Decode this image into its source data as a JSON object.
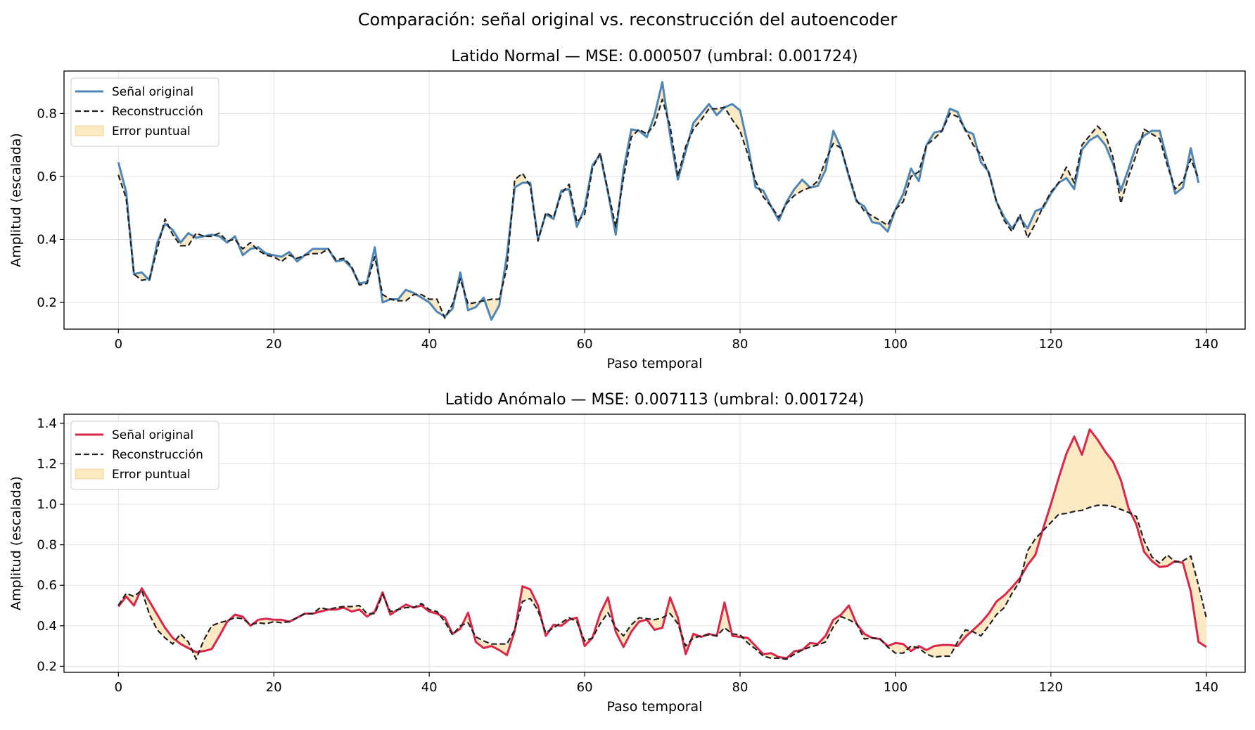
{
  "figure": {
    "suptitle": "Comparación: señal original vs. reconstrucción del autoencoder"
  },
  "chart_data": [
    {
      "type": "line",
      "title": "Latido Normal — MSE: 0.000507 (umbral: 0.001724)",
      "xlabel": "Paso temporal",
      "ylabel": "Amplitud (escalada)",
      "xlim": [
        -7,
        145
      ],
      "ylim": [
        0.115,
        0.935
      ],
      "xticks": [
        0,
        20,
        40,
        60,
        80,
        100,
        120,
        140
      ],
      "yticks": [
        0.2,
        0.4,
        0.6,
        0.8
      ],
      "grid": true,
      "legend_position": "upper left",
      "legend": [
        "Señal original",
        "Reconstrucción",
        "Error puntual"
      ],
      "fill_color": "#fde9c2",
      "series": [
        {
          "name": "Señal original",
          "color": "#4f86b8",
          "style": "solid",
          "values": [
            0.645,
            0.55,
            0.29,
            0.295,
            0.27,
            0.39,
            0.45,
            0.43,
            0.39,
            0.42,
            0.405,
            0.41,
            0.415,
            0.41,
            0.39,
            0.41,
            0.35,
            0.37,
            0.375,
            0.355,
            0.35,
            0.345,
            0.36,
            0.33,
            0.35,
            0.37,
            0.37,
            0.37,
            0.33,
            0.335,
            0.31,
            0.26,
            0.265,
            0.375,
            0.2,
            0.21,
            0.21,
            0.24,
            0.23,
            0.215,
            0.2,
            0.17,
            0.155,
            0.18,
            0.295,
            0.175,
            0.185,
            0.215,
            0.145,
            0.19,
            0.35,
            0.565,
            0.58,
            0.58,
            0.4,
            0.48,
            0.465,
            0.555,
            0.56,
            0.44,
            0.5,
            0.635,
            0.67,
            0.55,
            0.415,
            0.62,
            0.75,
            0.745,
            0.725,
            0.795,
            0.9,
            0.73,
            0.59,
            0.68,
            0.77,
            0.8,
            0.83,
            0.795,
            0.82,
            0.83,
            0.81,
            0.7,
            0.565,
            0.555,
            0.505,
            0.46,
            0.52,
            0.56,
            0.59,
            0.565,
            0.57,
            0.62,
            0.745,
            0.69,
            0.6,
            0.52,
            0.505,
            0.455,
            0.45,
            0.425,
            0.495,
            0.545,
            0.625,
            0.585,
            0.7,
            0.74,
            0.745,
            0.815,
            0.805,
            0.745,
            0.735,
            0.645,
            0.615,
            0.52,
            0.47,
            0.435,
            0.47,
            0.435,
            0.49,
            0.5,
            0.545,
            0.58,
            0.595,
            0.56,
            0.685,
            0.715,
            0.73,
            0.7,
            0.64,
            0.555,
            0.625,
            0.7,
            0.73,
            0.745,
            0.745,
            0.65,
            0.545,
            0.565,
            0.69,
            0.58
          ]
        },
        {
          "name": "Reconstrucción",
          "color": "#222222",
          "style": "dashed",
          "values": [
            0.605,
            0.53,
            0.29,
            0.27,
            0.275,
            0.37,
            0.465,
            0.415,
            0.38,
            0.38,
            0.42,
            0.41,
            0.41,
            0.42,
            0.395,
            0.4,
            0.37,
            0.39,
            0.365,
            0.35,
            0.345,
            0.33,
            0.35,
            0.34,
            0.35,
            0.355,
            0.355,
            0.37,
            0.335,
            0.34,
            0.315,
            0.255,
            0.26,
            0.345,
            0.225,
            0.21,
            0.205,
            0.205,
            0.225,
            0.225,
            0.21,
            0.21,
            0.15,
            0.195,
            0.275,
            0.195,
            0.2,
            0.205,
            0.21,
            0.21,
            0.31,
            0.59,
            0.61,
            0.57,
            0.395,
            0.485,
            0.47,
            0.545,
            0.575,
            0.455,
            0.48,
            0.625,
            0.675,
            0.555,
            0.44,
            0.595,
            0.725,
            0.75,
            0.735,
            0.765,
            0.845,
            0.76,
            0.6,
            0.695,
            0.75,
            0.78,
            0.815,
            0.815,
            0.82,
            0.78,
            0.745,
            0.67,
            0.585,
            0.535,
            0.505,
            0.47,
            0.515,
            0.54,
            0.555,
            0.565,
            0.585,
            0.65,
            0.705,
            0.69,
            0.605,
            0.525,
            0.49,
            0.475,
            0.46,
            0.445,
            0.495,
            0.52,
            0.6,
            0.615,
            0.7,
            0.72,
            0.745,
            0.8,
            0.79,
            0.75,
            0.7,
            0.67,
            0.61,
            0.52,
            0.46,
            0.425,
            0.48,
            0.405,
            0.45,
            0.505,
            0.55,
            0.58,
            0.63,
            0.58,
            0.7,
            0.73,
            0.76,
            0.735,
            0.66,
            0.515,
            0.6,
            0.67,
            0.75,
            0.735,
            0.72,
            0.635,
            0.56,
            0.585,
            0.655,
            0.595
          ]
        }
      ]
    },
    {
      "type": "line",
      "title": "Latido Anómalo — MSE: 0.007113 (umbral: 0.001724)",
      "xlabel": "Paso temporal",
      "ylabel": "Amplitud (escalada)",
      "xlim": [
        -7,
        145
      ],
      "ylim": [
        0.17,
        1.445
      ],
      "xticks": [
        0,
        20,
        40,
        60,
        80,
        100,
        120,
        140
      ],
      "yticks": [
        0.2,
        0.4,
        0.6,
        0.8,
        1.0,
        1.2,
        1.4
      ],
      "grid": true,
      "legend_position": "upper left",
      "legend": [
        "Señal original",
        "Reconstrucción",
        "Error puntual"
      ],
      "fill_color": "#fde9c2",
      "series": [
        {
          "name": "Señal original",
          "color": "#d9264a",
          "style": "solid",
          "values": [
            0.495,
            0.545,
            0.5,
            0.585,
            0.52,
            0.455,
            0.39,
            0.34,
            0.31,
            0.29,
            0.27,
            0.275,
            0.285,
            0.35,
            0.42,
            0.455,
            0.445,
            0.4,
            0.43,
            0.435,
            0.43,
            0.43,
            0.42,
            0.44,
            0.46,
            0.46,
            0.47,
            0.48,
            0.48,
            0.49,
            0.47,
            0.48,
            0.445,
            0.47,
            0.565,
            0.455,
            0.48,
            0.505,
            0.49,
            0.5,
            0.47,
            0.46,
            0.44,
            0.36,
            0.385,
            0.465,
            0.32,
            0.29,
            0.3,
            0.28,
            0.255,
            0.375,
            0.595,
            0.58,
            0.5,
            0.35,
            0.405,
            0.4,
            0.43,
            0.44,
            0.3,
            0.34,
            0.46,
            0.54,
            0.37,
            0.295,
            0.37,
            0.42,
            0.43,
            0.38,
            0.39,
            0.54,
            0.44,
            0.26,
            0.36,
            0.345,
            0.36,
            0.35,
            0.515,
            0.35,
            0.345,
            0.34,
            0.3,
            0.26,
            0.265,
            0.245,
            0.24,
            0.275,
            0.28,
            0.315,
            0.31,
            0.35,
            0.43,
            0.455,
            0.5,
            0.41,
            0.36,
            0.34,
            0.335,
            0.3,
            0.315,
            0.31,
            0.275,
            0.3,
            0.28,
            0.3,
            0.305,
            0.305,
            0.3,
            0.345,
            0.38,
            0.415,
            0.46,
            0.52,
            0.55,
            0.59,
            0.635,
            0.7,
            0.75,
            0.88,
            1.0,
            1.13,
            1.25,
            1.335,
            1.245,
            1.37,
            1.32,
            1.26,
            1.21,
            1.12,
            0.98,
            0.9,
            0.765,
            0.72,
            0.69,
            0.695,
            0.72,
            0.71,
            0.57,
            0.32,
            0.295
          ]
        },
        {
          "name": "Reconstrucción",
          "color": "#222222",
          "style": "dashed",
          "values": [
            0.5,
            0.56,
            0.545,
            0.575,
            0.455,
            0.38,
            0.34,
            0.31,
            0.36,
            0.32,
            0.235,
            0.33,
            0.4,
            0.415,
            0.425,
            0.44,
            0.435,
            0.405,
            0.415,
            0.41,
            0.42,
            0.415,
            0.42,
            0.44,
            0.46,
            0.46,
            0.49,
            0.48,
            0.49,
            0.495,
            0.495,
            0.5,
            0.46,
            0.46,
            0.555,
            0.47,
            0.48,
            0.49,
            0.49,
            0.51,
            0.48,
            0.47,
            0.42,
            0.355,
            0.4,
            0.415,
            0.345,
            0.325,
            0.31,
            0.31,
            0.31,
            0.38,
            0.52,
            0.535,
            0.475,
            0.365,
            0.39,
            0.415,
            0.44,
            0.42,
            0.325,
            0.34,
            0.41,
            0.465,
            0.39,
            0.35,
            0.405,
            0.44,
            0.435,
            0.43,
            0.44,
            0.46,
            0.41,
            0.3,
            0.34,
            0.35,
            0.355,
            0.35,
            0.39,
            0.36,
            0.355,
            0.315,
            0.285,
            0.25,
            0.24,
            0.24,
            0.235,
            0.26,
            0.28,
            0.295,
            0.305,
            0.32,
            0.395,
            0.445,
            0.43,
            0.41,
            0.335,
            0.34,
            0.335,
            0.295,
            0.265,
            0.265,
            0.3,
            0.29,
            0.26,
            0.245,
            0.25,
            0.25,
            0.32,
            0.38,
            0.37,
            0.35,
            0.4,
            0.455,
            0.49,
            0.56,
            0.62,
            0.77,
            0.83,
            0.87,
            0.91,
            0.95,
            0.955,
            0.965,
            0.97,
            0.985,
            0.995,
            0.995,
            0.99,
            0.975,
            0.96,
            0.94,
            0.82,
            0.74,
            0.71,
            0.75,
            0.715,
            0.72,
            0.745,
            0.6,
            0.44
          ]
        }
      ]
    }
  ]
}
